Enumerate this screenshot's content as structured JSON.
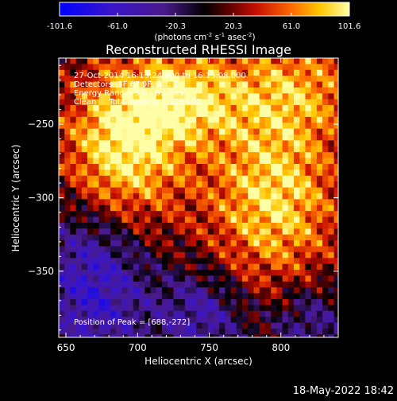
{
  "colorbar": {
    "ticks": [
      "-101.6",
      "-61.0",
      "-20.3",
      "20.3",
      "61.0",
      "101.6"
    ],
    "min": -101.6,
    "max": 101.6
  },
  "units": {
    "prefix": "(photons cm",
    "exp1": "-2",
    "mid1": " s",
    "exp2": "-1",
    "mid2": " asec",
    "exp3": "-2",
    "suffix": ")"
  },
  "chart_data": {
    "type": "heatmap",
    "title": "Reconstructed RHESSI Image",
    "xlabel": "Heliocentric X (arcsec)",
    "ylabel": "Heliocentric Y (arcsec)",
    "xlim": [
      645,
      840
    ],
    "ylim": [
      -395,
      -205
    ],
    "xticks": [
      650,
      700,
      750,
      800
    ],
    "yticks": [
      -250,
      -300,
      -350
    ],
    "info_lines": [
      "27-Oct-2014 16:13:24.000 to 16:15:08.000",
      "Detectors: 3F 6F 9F, Att: 1",
      "Energy Range: 3.0 - 6.0 keV",
      "Clean     Total counts: 1.22E+03"
    ],
    "peak_label": "Position of Peak = [688,-272]",
    "peak": [
      688,
      -272
    ]
  },
  "footer": {
    "timestamp": "18-May-2022 18:42"
  }
}
